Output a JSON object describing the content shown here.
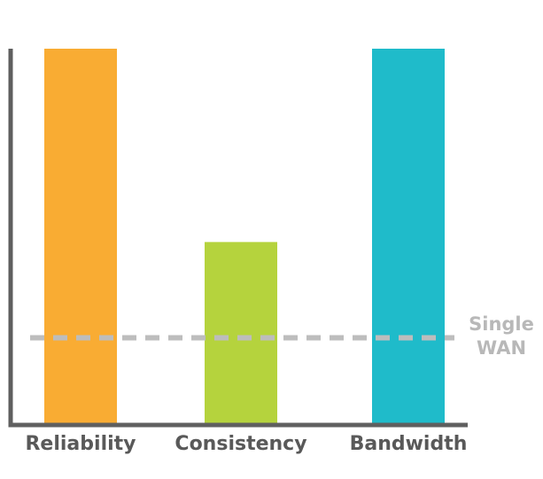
{
  "chart_data": {
    "type": "bar",
    "title": "",
    "xlabel": "",
    "ylabel": "",
    "categories": [
      "Reliability",
      "Consistency",
      "Bandwidth"
    ],
    "values": [
      10,
      4.85,
      10
    ],
    "colors": [
      "#f9ac33",
      "#b5d33d",
      "#1fbbca"
    ],
    "ylim": [
      0,
      10
    ],
    "grid": false,
    "reference_line": {
      "label_lines": [
        "Single",
        "WAN"
      ],
      "value": 2.3,
      "style": "dashed",
      "color": "#bdbdbd"
    },
    "axis_color": "#5f5f5f"
  }
}
